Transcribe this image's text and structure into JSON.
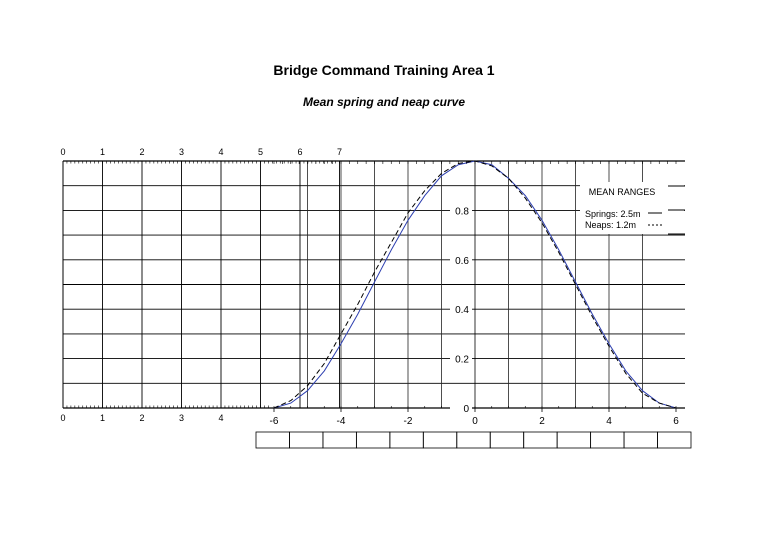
{
  "title": "Bridge Command Training Area 1",
  "subtitle": "Mean spring and neap curve",
  "chart_data": {
    "type": "line",
    "x_bottom": {
      "min": -6,
      "max": 6,
      "ticks": [
        -6,
        -4,
        -2,
        0,
        2,
        4,
        6
      ]
    },
    "y": {
      "min": 0,
      "max": 1,
      "ticks": [
        "0",
        "0.2",
        "0.4",
        "0.6",
        "0.8"
      ]
    },
    "height_scale_top": [
      "0",
      "1",
      "2",
      "3",
      "4",
      "5",
      "6",
      "7"
    ],
    "height_scale_bottom": [
      "0",
      "1",
      "2",
      "3",
      "4"
    ],
    "grid": true,
    "legend": {
      "heading": "MEAN RANGES",
      "springs": "Springs: 2.5m",
      "neaps": "Neaps:  1.2m"
    },
    "series": [
      {
        "style": "solid",
        "color": "#2d3fb0",
        "x": [
          -6,
          -5.5,
          -5,
          -4.5,
          -4,
          -3.5,
          -3,
          -2.5,
          -2,
          -1.5,
          -1,
          -0.5,
          0,
          0.5,
          1,
          1.5,
          2,
          2.5,
          3,
          3.5,
          4,
          4.5,
          5,
          5.5,
          6
        ],
        "y": [
          0.0,
          0.02,
          0.07,
          0.15,
          0.26,
          0.38,
          0.51,
          0.64,
          0.76,
          0.86,
          0.94,
          0.985,
          1.0,
          0.985,
          0.93,
          0.86,
          0.76,
          0.64,
          0.51,
          0.38,
          0.26,
          0.15,
          0.07,
          0.02,
          0.0
        ]
      },
      {
        "style": "dashed",
        "color": "#000000",
        "x": [
          -6,
          -5.5,
          -5,
          -4.5,
          -4,
          -3.5,
          -3,
          -2.5,
          -2,
          -1.5,
          -1,
          -0.5,
          0,
          0.5,
          1,
          1.5,
          2,
          2.5,
          3,
          3.5,
          4,
          4.5,
          5,
          5.5,
          6
        ],
        "y": [
          0.0,
          0.03,
          0.09,
          0.18,
          0.3,
          0.42,
          0.55,
          0.67,
          0.79,
          0.88,
          0.95,
          0.99,
          1.0,
          0.98,
          0.93,
          0.85,
          0.75,
          0.63,
          0.5,
          0.37,
          0.25,
          0.14,
          0.06,
          0.02,
          0.0
        ]
      }
    ],
    "hw_table_cells": 13
  }
}
